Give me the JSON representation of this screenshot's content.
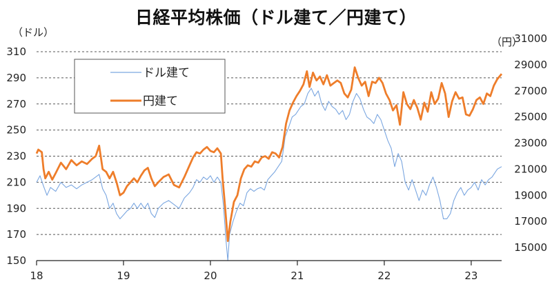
{
  "chart_data": {
    "type": "line",
    "title": "日経平均株価（ドル建て／円建て）",
    "left_unit": "（ドル）",
    "right_unit": "（円）",
    "x_ticks": [
      {
        "label": "18",
        "x": 2018
      },
      {
        "label": "19",
        "x": 2019
      },
      {
        "label": "20",
        "x": 2020
      },
      {
        "label": "21",
        "x": 2021
      },
      {
        "label": "22",
        "x": 2022
      },
      {
        "label": "23",
        "x": 2023
      }
    ],
    "x_range": [
      2018.0,
      2023.35
    ],
    "y_left": {
      "min": 150,
      "max": 310,
      "ticks": [
        150,
        170,
        190,
        210,
        230,
        250,
        270,
        290,
        310
      ]
    },
    "y_right": {
      "min": 15000,
      "max": 31000,
      "ticks": [
        15000,
        17000,
        19000,
        21000,
        23000,
        25000,
        27000,
        29000,
        31000
      ]
    },
    "legend": {
      "placement": "top-left"
    },
    "grid": "horizontal-dashed",
    "series": [
      {
        "name": "ドル建て",
        "axis": "left",
        "color": "#7aa6e0",
        "points": [
          [
            2018.0,
            210
          ],
          [
            2018.04,
            215
          ],
          [
            2018.08,
            207
          ],
          [
            2018.12,
            200
          ],
          [
            2018.16,
            206
          ],
          [
            2018.22,
            203
          ],
          [
            2018.28,
            210
          ],
          [
            2018.34,
            206
          ],
          [
            2018.4,
            208
          ],
          [
            2018.46,
            205
          ],
          [
            2018.52,
            208
          ],
          [
            2018.58,
            210
          ],
          [
            2018.64,
            212
          ],
          [
            2018.72,
            216
          ],
          [
            2018.76,
            205
          ],
          [
            2018.8,
            200
          ],
          [
            2018.84,
            190
          ],
          [
            2018.88,
            194
          ],
          [
            2018.92,
            186
          ],
          [
            2018.96,
            182
          ],
          [
            2019.0,
            185
          ],
          [
            2019.04,
            188
          ],
          [
            2019.08,
            190
          ],
          [
            2019.12,
            194
          ],
          [
            2019.16,
            190
          ],
          [
            2019.2,
            194
          ],
          [
            2019.24,
            190
          ],
          [
            2019.28,
            194
          ],
          [
            2019.32,
            186
          ],
          [
            2019.36,
            183
          ],
          [
            2019.4,
            190
          ],
          [
            2019.46,
            194
          ],
          [
            2019.52,
            196
          ],
          [
            2019.58,
            193
          ],
          [
            2019.64,
            190
          ],
          [
            2019.7,
            198
          ],
          [
            2019.76,
            202
          ],
          [
            2019.8,
            206
          ],
          [
            2019.84,
            212
          ],
          [
            2019.88,
            210
          ],
          [
            2019.92,
            214
          ],
          [
            2019.96,
            212
          ],
          [
            2020.0,
            215
          ],
          [
            2020.04,
            210
          ],
          [
            2020.08,
            214
          ],
          [
            2020.12,
            210
          ],
          [
            2020.15,
            192
          ],
          [
            2020.18,
            165
          ],
          [
            2020.2,
            150
          ],
          [
            2020.22,
            170
          ],
          [
            2020.26,
            180
          ],
          [
            2020.3,
            188
          ],
          [
            2020.34,
            194
          ],
          [
            2020.38,
            192
          ],
          [
            2020.42,
            202
          ],
          [
            2020.46,
            205
          ],
          [
            2020.5,
            203
          ],
          [
            2020.54,
            205
          ],
          [
            2020.58,
            206
          ],
          [
            2020.62,
            204
          ],
          [
            2020.66,
            212
          ],
          [
            2020.7,
            215
          ],
          [
            2020.74,
            218
          ],
          [
            2020.78,
            222
          ],
          [
            2020.82,
            226
          ],
          [
            2020.86,
            245
          ],
          [
            2020.9,
            252
          ],
          [
            2020.94,
            260
          ],
          [
            2020.98,
            262
          ],
          [
            2021.04,
            268
          ],
          [
            2021.08,
            270
          ],
          [
            2021.12,
            278
          ],
          [
            2021.16,
            282
          ],
          [
            2021.2,
            276
          ],
          [
            2021.24,
            280
          ],
          [
            2021.28,
            270
          ],
          [
            2021.32,
            265
          ],
          [
            2021.36,
            272
          ],
          [
            2021.4,
            268
          ],
          [
            2021.44,
            266
          ],
          [
            2021.48,
            262
          ],
          [
            2021.52,
            265
          ],
          [
            2021.56,
            258
          ],
          [
            2021.6,
            262
          ],
          [
            2021.64,
            272
          ],
          [
            2021.68,
            278
          ],
          [
            2021.72,
            274
          ],
          [
            2021.76,
            266
          ],
          [
            2021.8,
            260
          ],
          [
            2021.84,
            258
          ],
          [
            2021.88,
            255
          ],
          [
            2021.92,
            262
          ],
          [
            2021.96,
            258
          ],
          [
            2022.0,
            250
          ],
          [
            2022.04,
            242
          ],
          [
            2022.08,
            236
          ],
          [
            2022.12,
            222
          ],
          [
            2022.16,
            232
          ],
          [
            2022.2,
            226
          ],
          [
            2022.24,
            210
          ],
          [
            2022.28,
            204
          ],
          [
            2022.32,
            212
          ],
          [
            2022.36,
            204
          ],
          [
            2022.4,
            196
          ],
          [
            2022.44,
            204
          ],
          [
            2022.48,
            200
          ],
          [
            2022.52,
            208
          ],
          [
            2022.56,
            214
          ],
          [
            2022.6,
            206
          ],
          [
            2022.64,
            196
          ],
          [
            2022.68,
            182
          ],
          [
            2022.72,
            182
          ],
          [
            2022.76,
            186
          ],
          [
            2022.8,
            196
          ],
          [
            2022.84,
            202
          ],
          [
            2022.88,
            206
          ],
          [
            2022.92,
            200
          ],
          [
            2022.96,
            204
          ],
          [
            2023.0,
            206
          ],
          [
            2023.04,
            210
          ],
          [
            2023.08,
            204
          ],
          [
            2023.12,
            212
          ],
          [
            2023.16,
            208
          ],
          [
            2023.2,
            212
          ],
          [
            2023.24,
            214
          ],
          [
            2023.3,
            220
          ],
          [
            2023.35,
            222
          ]
        ]
      },
      {
        "name": "円建て",
        "axis": "right",
        "color": "#ee7d2a",
        "points": [
          [
            2018.0,
            23200
          ],
          [
            2018.02,
            23500
          ],
          [
            2018.06,
            23300
          ],
          [
            2018.08,
            22000
          ],
          [
            2018.1,
            21300
          ],
          [
            2018.14,
            21800
          ],
          [
            2018.18,
            21200
          ],
          [
            2018.22,
            21700
          ],
          [
            2018.28,
            22500
          ],
          [
            2018.34,
            22000
          ],
          [
            2018.4,
            22700
          ],
          [
            2018.46,
            22300
          ],
          [
            2018.52,
            22600
          ],
          [
            2018.58,
            22400
          ],
          [
            2018.64,
            22800
          ],
          [
            2018.68,
            23000
          ],
          [
            2018.72,
            23800
          ],
          [
            2018.76,
            22000
          ],
          [
            2018.8,
            21800
          ],
          [
            2018.84,
            21300
          ],
          [
            2018.88,
            21800
          ],
          [
            2018.92,
            21000
          ],
          [
            2018.96,
            20000
          ],
          [
            2019.0,
            20200
          ],
          [
            2019.04,
            20700
          ],
          [
            2019.08,
            21000
          ],
          [
            2019.12,
            21300
          ],
          [
            2019.16,
            21000
          ],
          [
            2019.2,
            21500
          ],
          [
            2019.24,
            21900
          ],
          [
            2019.28,
            22100
          ],
          [
            2019.32,
            21300
          ],
          [
            2019.36,
            20700
          ],
          [
            2019.4,
            21000
          ],
          [
            2019.46,
            21400
          ],
          [
            2019.52,
            21600
          ],
          [
            2019.58,
            20800
          ],
          [
            2019.64,
            20600
          ],
          [
            2019.7,
            21400
          ],
          [
            2019.76,
            22300
          ],
          [
            2019.8,
            22900
          ],
          [
            2019.84,
            23300
          ],
          [
            2019.88,
            23200
          ],
          [
            2019.92,
            23500
          ],
          [
            2019.96,
            23700
          ],
          [
            2020.0,
            23400
          ],
          [
            2020.04,
            23300
          ],
          [
            2020.08,
            23600
          ],
          [
            2020.12,
            23200
          ],
          [
            2020.14,
            21300
          ],
          [
            2020.17,
            19000
          ],
          [
            2020.2,
            16500
          ],
          [
            2020.23,
            18000
          ],
          [
            2020.27,
            19500
          ],
          [
            2020.31,
            20000
          ],
          [
            2020.35,
            21300
          ],
          [
            2020.39,
            22000
          ],
          [
            2020.43,
            22300
          ],
          [
            2020.47,
            22200
          ],
          [
            2020.51,
            22600
          ],
          [
            2020.55,
            22500
          ],
          [
            2020.59,
            22900
          ],
          [
            2020.63,
            23000
          ],
          [
            2020.67,
            22800
          ],
          [
            2020.71,
            23300
          ],
          [
            2020.75,
            23200
          ],
          [
            2020.79,
            22900
          ],
          [
            2020.83,
            23700
          ],
          [
            2020.87,
            25500
          ],
          [
            2020.91,
            26500
          ],
          [
            2020.95,
            27100
          ],
          [
            2020.99,
            27600
          ],
          [
            2021.03,
            28000
          ],
          [
            2021.07,
            28500
          ],
          [
            2021.11,
            29500
          ],
          [
            2021.14,
            28300
          ],
          [
            2021.18,
            29400
          ],
          [
            2021.22,
            28800
          ],
          [
            2021.26,
            29100
          ],
          [
            2021.3,
            28500
          ],
          [
            2021.34,
            29200
          ],
          [
            2021.38,
            28400
          ],
          [
            2021.42,
            28600
          ],
          [
            2021.46,
            28800
          ],
          [
            2021.5,
            28600
          ],
          [
            2021.54,
            27800
          ],
          [
            2021.58,
            27500
          ],
          [
            2021.62,
            28100
          ],
          [
            2021.66,
            29800
          ],
          [
            2021.7,
            29000
          ],
          [
            2021.74,
            28400
          ],
          [
            2021.78,
            28700
          ],
          [
            2021.82,
            27600
          ],
          [
            2021.86,
            28700
          ],
          [
            2021.9,
            28600
          ],
          [
            2021.94,
            29000
          ],
          [
            2021.98,
            28600
          ],
          [
            2022.02,
            27800
          ],
          [
            2022.06,
            27300
          ],
          [
            2022.1,
            26500
          ],
          [
            2022.14,
            26900
          ],
          [
            2022.18,
            25400
          ],
          [
            2022.22,
            27900
          ],
          [
            2022.26,
            27000
          ],
          [
            2022.3,
            26600
          ],
          [
            2022.34,
            27300
          ],
          [
            2022.38,
            26700
          ],
          [
            2022.42,
            25800
          ],
          [
            2022.46,
            27100
          ],
          [
            2022.5,
            26400
          ],
          [
            2022.54,
            27900
          ],
          [
            2022.58,
            27000
          ],
          [
            2022.62,
            27400
          ],
          [
            2022.66,
            28600
          ],
          [
            2022.7,
            27800
          ],
          [
            2022.74,
            26000
          ],
          [
            2022.78,
            27200
          ],
          [
            2022.82,
            27900
          ],
          [
            2022.86,
            27400
          ],
          [
            2022.9,
            27500
          ],
          [
            2022.94,
            26200
          ],
          [
            2022.98,
            26100
          ],
          [
            2023.02,
            26600
          ],
          [
            2023.06,
            27300
          ],
          [
            2023.1,
            27500
          ],
          [
            2023.14,
            27000
          ],
          [
            2023.18,
            27800
          ],
          [
            2023.22,
            27600
          ],
          [
            2023.26,
            28400
          ],
          [
            2023.3,
            28900
          ],
          [
            2023.35,
            29300
          ]
        ]
      }
    ]
  }
}
